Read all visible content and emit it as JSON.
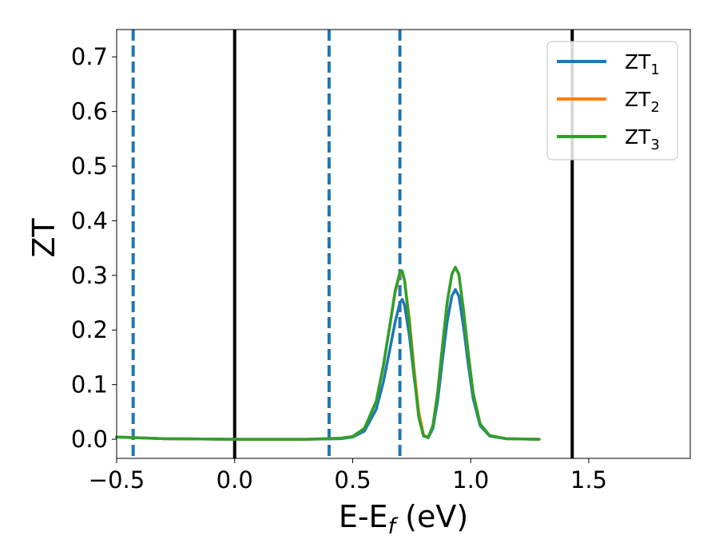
{
  "chart_data": {
    "type": "line",
    "xlabel": {
      "main": "E-E",
      "sub": "f",
      "unit": " (eV)"
    },
    "ylabel": "ZT",
    "xlim": [
      -0.5,
      1.93
    ],
    "ylim": [
      -0.035,
      0.75
    ],
    "xticks": [
      -0.5,
      0.0,
      0.5,
      1.0,
      1.5
    ],
    "xtick_labels": [
      "−0.5",
      "0.0",
      "0.5",
      "1.0",
      "1.5"
    ],
    "yticks": [
      0.0,
      0.1,
      0.2,
      0.3,
      0.4,
      0.5,
      0.6,
      0.7
    ],
    "ytick_labels": [
      "0.0",
      "0.1",
      "0.2",
      "0.3",
      "0.4",
      "0.5",
      "0.6",
      "0.7"
    ],
    "grid": false,
    "legend_position": "top-right",
    "vertical_lines": [
      {
        "x": -0.43,
        "style": "dashed",
        "color": "#1f77b4"
      },
      {
        "x": 0.0,
        "style": "solid",
        "color": "#000000"
      },
      {
        "x": 0.4,
        "style": "dashed",
        "color": "#1f77b4"
      },
      {
        "x": 0.7,
        "style": "dashed",
        "color": "#1f77b4"
      },
      {
        "x": 1.43,
        "style": "solid",
        "color": "#000000"
      }
    ],
    "series": [
      {
        "name": "ZT",
        "name_sub": "1",
        "color": "#1f77b4",
        "x": [
          -0.5,
          -0.3,
          0.0,
          0.3,
          0.45,
          0.5,
          0.55,
          0.6,
          0.63,
          0.66,
          0.68,
          0.7,
          0.71,
          0.72,
          0.74,
          0.76,
          0.78,
          0.8,
          0.82,
          0.84,
          0.86,
          0.88,
          0.9,
          0.92,
          0.935,
          0.95,
          0.97,
          0.99,
          1.01,
          1.04,
          1.08,
          1.15,
          1.29
        ],
        "y": [
          0.004,
          0.001,
          0.0,
          0.0,
          0.001,
          0.004,
          0.015,
          0.055,
          0.105,
          0.17,
          0.215,
          0.25,
          0.256,
          0.245,
          0.19,
          0.115,
          0.048,
          0.008,
          0.003,
          0.02,
          0.07,
          0.145,
          0.215,
          0.262,
          0.274,
          0.262,
          0.205,
          0.135,
          0.075,
          0.025,
          0.006,
          0.001,
          0.0
        ]
      },
      {
        "name": "ZT",
        "name_sub": "2",
        "color": "#ff7f0e",
        "x": [
          -0.5,
          -0.3,
          0.0,
          0.3,
          0.45,
          0.5,
          0.55,
          0.6,
          0.63,
          0.66,
          0.68,
          0.7,
          0.71,
          0.72,
          0.74,
          0.76,
          0.78,
          0.8,
          0.82,
          0.84,
          0.86,
          0.88,
          0.9,
          0.92,
          0.935,
          0.95,
          0.97,
          0.99,
          1.01,
          1.04,
          1.08,
          1.15,
          1.29
        ],
        "y": [
          0.004,
          0.001,
          0.0,
          0.0,
          0.002,
          0.005,
          0.02,
          0.07,
          0.135,
          0.215,
          0.27,
          0.303,
          0.305,
          0.29,
          0.22,
          0.13,
          0.05,
          0.008,
          0.003,
          0.025,
          0.085,
          0.17,
          0.25,
          0.302,
          0.315,
          0.302,
          0.235,
          0.155,
          0.085,
          0.028,
          0.007,
          0.001,
          0.0
        ]
      },
      {
        "name": "ZT",
        "name_sub": "3",
        "color": "#2ca02c",
        "x": [
          -0.5,
          -0.3,
          0.0,
          0.3,
          0.45,
          0.5,
          0.55,
          0.6,
          0.63,
          0.66,
          0.68,
          0.7,
          0.71,
          0.72,
          0.74,
          0.76,
          0.78,
          0.8,
          0.82,
          0.84,
          0.86,
          0.88,
          0.9,
          0.92,
          0.935,
          0.95,
          0.97,
          0.99,
          1.01,
          1.04,
          1.08,
          1.15,
          1.29
        ],
        "y": [
          0.004,
          0.001,
          0.0,
          0.0,
          0.002,
          0.005,
          0.02,
          0.07,
          0.135,
          0.215,
          0.272,
          0.306,
          0.308,
          0.29,
          0.212,
          0.118,
          0.04,
          0.006,
          0.003,
          0.025,
          0.085,
          0.17,
          0.25,
          0.302,
          0.315,
          0.302,
          0.235,
          0.155,
          0.085,
          0.028,
          0.007,
          0.001,
          0.0
        ]
      }
    ]
  }
}
